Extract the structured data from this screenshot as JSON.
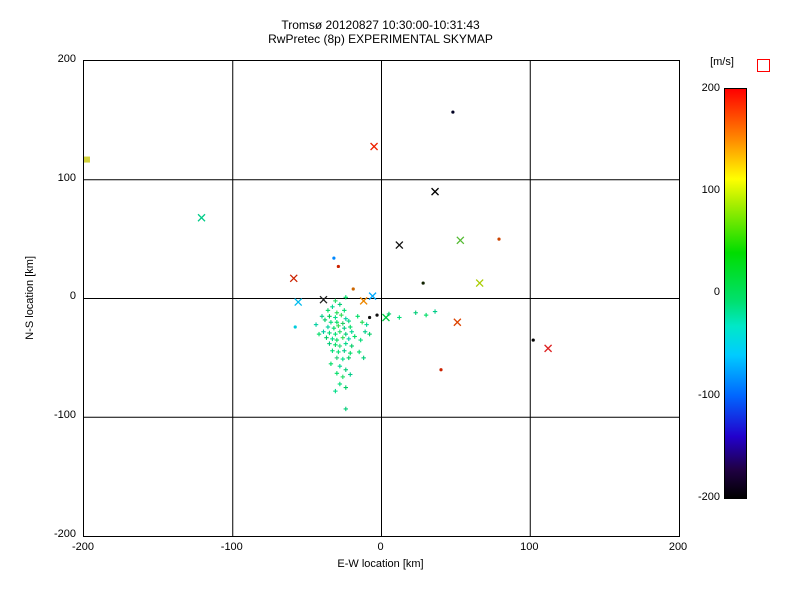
{
  "title": {
    "line1": "Tromsø 20120827 10:30:00-10:31:43",
    "line2": "RwPretec (8p) EXPERIMENTAL SKYMAP"
  },
  "chart_data": {
    "type": "scatter",
    "title": "Tromsø 20120827 10:30:00-10:31:43",
    "subtitle": "RwPretec (8p) EXPERIMENTAL SKYMAP",
    "xlabel": "E-W location [km]",
    "ylabel": "N-S location [km]",
    "xlim": [
      -200,
      200
    ],
    "ylim": [
      -200,
      200
    ],
    "xticks": [
      "-200",
      "-100",
      "0",
      "100",
      "200"
    ],
    "yticks": [
      "200",
      "100",
      "0",
      "-100",
      "-200"
    ],
    "grid": [
      -100,
      0,
      100
    ],
    "grid_on": true,
    "value_encoding": "marker color encodes Doppler velocity [m/s] per colorbar; markers: x=cross, p=small plus, d=dot, s=square",
    "colorbar": {
      "title": "[m/s]",
      "ticks": [
        "200",
        "100",
        "0",
        "-100",
        "-200"
      ],
      "min": -200,
      "max": 200,
      "position": "right",
      "stops": [
        [
          "#ff0000",
          0
        ],
        [
          "#ff8c00",
          12.5
        ],
        [
          "#ffff00",
          22
        ],
        [
          "#aaee00",
          28
        ],
        [
          "#00dd00",
          40
        ],
        [
          "#00e070",
          52
        ],
        [
          "#00e8c8",
          58
        ],
        [
          "#00ccff",
          65
        ],
        [
          "#0066ff",
          75
        ],
        [
          "#2200cc",
          85
        ],
        [
          "#200044",
          93
        ],
        [
          "#000000",
          100
        ]
      ]
    },
    "points": [
      [
        -198,
        117,
        "#d2d23c",
        "s"
      ],
      [
        -121,
        68,
        "#00cc88",
        "x"
      ],
      [
        -59,
        17,
        "#cc2200",
        "x"
      ],
      [
        -56,
        -3,
        "#00bbee",
        "x"
      ],
      [
        -39,
        -1,
        "#222222",
        "x"
      ],
      [
        -12,
        -2,
        "#ee8800",
        "x"
      ],
      [
        -6,
        2,
        "#00aaff",
        "x"
      ],
      [
        -5,
        128,
        "#ee2200",
        "x"
      ],
      [
        3,
        -16,
        "#00cc44",
        "x"
      ],
      [
        12,
        45,
        "#111111",
        "x"
      ],
      [
        36,
        90,
        "#000000",
        "x"
      ],
      [
        53,
        49,
        "#55bb33",
        "x"
      ],
      [
        51,
        -20,
        "#dd4400",
        "x"
      ],
      [
        66,
        13,
        "#aacc00",
        "x"
      ],
      [
        112,
        -42,
        "#dd2222",
        "x"
      ],
      [
        -32,
        34,
        "#0088ff",
        "d"
      ],
      [
        48,
        157,
        "#000022",
        "d"
      ],
      [
        79,
        50,
        "#cc4400",
        "d"
      ],
      [
        -29,
        27,
        "#cc2200",
        "d"
      ],
      [
        28,
        13,
        "#102200",
        "d"
      ],
      [
        -8,
        -16,
        "#111111",
        "d"
      ],
      [
        -3,
        -14,
        "#111111",
        "d"
      ],
      [
        102,
        -35,
        "#000000",
        "d"
      ],
      [
        40,
        -60,
        "#cc2200",
        "d"
      ],
      [
        -58,
        -24,
        "#00ccdd",
        "d"
      ],
      [
        -19,
        8,
        "#cc6600",
        "d"
      ],
      [
        -36,
        -10,
        "#00dd66",
        "p"
      ],
      [
        -33,
        -7,
        "#00d890",
        "p"
      ],
      [
        -30,
        -12,
        "#22dd55",
        "p"
      ],
      [
        -28,
        -5,
        "#00cc77",
        "p"
      ],
      [
        -25,
        -10,
        "#00e070",
        "p"
      ],
      [
        -35,
        -15,
        "#00cc55",
        "p"
      ],
      [
        -31,
        -16,
        "#00dd88",
        "p"
      ],
      [
        -27,
        -14,
        "#33dd55",
        "p"
      ],
      [
        -24,
        -17,
        "#00d0a0",
        "p"
      ],
      [
        -38,
        -18,
        "#00cc66",
        "p"
      ],
      [
        -34,
        -20,
        "#00dd77",
        "p"
      ],
      [
        -30,
        -20,
        "#00e060",
        "p"
      ],
      [
        -26,
        -21,
        "#22cc66",
        "p"
      ],
      [
        -22,
        -19,
        "#00d888",
        "p"
      ],
      [
        -36,
        -24,
        "#00cfa0",
        "p"
      ],
      [
        -32,
        -25,
        "#00dd66",
        "p"
      ],
      [
        -29,
        -23,
        "#33e055",
        "p"
      ],
      [
        -25,
        -25,
        "#00cc88",
        "p"
      ],
      [
        -21,
        -24,
        "#00dd66",
        "p"
      ],
      [
        -39,
        -28,
        "#00c9a0",
        "p"
      ],
      [
        -35,
        -29,
        "#00dd77",
        "p"
      ],
      [
        -31,
        -30,
        "#00e070",
        "p"
      ],
      [
        -28,
        -28,
        "#22dd66",
        "p"
      ],
      [
        -24,
        -30,
        "#00cc77",
        "p"
      ],
      [
        -20,
        -28,
        "#00d890",
        "p"
      ],
      [
        -37,
        -33,
        "#00cc66",
        "p"
      ],
      [
        -33,
        -34,
        "#00dd88",
        "p"
      ],
      [
        -30,
        -35,
        "#00e060",
        "p"
      ],
      [
        -26,
        -33,
        "#33dd55",
        "p"
      ],
      [
        -22,
        -34,
        "#00cfa8",
        "p"
      ],
      [
        -18,
        -32,
        "#00dd66",
        "p"
      ],
      [
        -35,
        -38,
        "#00cc77",
        "p"
      ],
      [
        -31,
        -39,
        "#00dd66",
        "p"
      ],
      [
        -28,
        -40,
        "#22dd77",
        "p"
      ],
      [
        -24,
        -38,
        "#00d888",
        "p"
      ],
      [
        -20,
        -40,
        "#00cc66",
        "p"
      ],
      [
        -33,
        -44,
        "#00dd77",
        "p"
      ],
      [
        -29,
        -45,
        "#00e070",
        "p"
      ],
      [
        -25,
        -44,
        "#00cc88",
        "p"
      ],
      [
        -21,
        -46,
        "#00dd66",
        "p"
      ],
      [
        -30,
        -50,
        "#22cc77",
        "p"
      ],
      [
        -26,
        -51,
        "#00dd88",
        "p"
      ],
      [
        -22,
        -50,
        "#00cc66",
        "p"
      ],
      [
        -34,
        -55,
        "#00dd66",
        "p"
      ],
      [
        -28,
        -57,
        "#00d890",
        "p"
      ],
      [
        -24,
        -60,
        "#00cc77",
        "p"
      ],
      [
        -30,
        -63,
        "#00dd66",
        "p"
      ],
      [
        -26,
        -66,
        "#22dd66",
        "p"
      ],
      [
        -21,
        -64,
        "#00cc88",
        "p"
      ],
      [
        -28,
        -72,
        "#00dd77",
        "p"
      ],
      [
        -24,
        -75,
        "#00cc66",
        "p"
      ],
      [
        -31,
        -78,
        "#00dd88",
        "p"
      ],
      [
        -24,
        -93,
        "#00cc77",
        "p"
      ],
      [
        -16,
        -15,
        "#00dd66",
        "p"
      ],
      [
        -13,
        -20,
        "#22dd55",
        "p"
      ],
      [
        -11,
        -28,
        "#00cc88",
        "p"
      ],
      [
        -14,
        -35,
        "#00dd77",
        "p"
      ],
      [
        -10,
        -22,
        "#00d890",
        "p"
      ],
      [
        -8,
        -30,
        "#00cc66",
        "p"
      ],
      [
        -15,
        -45,
        "#00dd66",
        "p"
      ],
      [
        -12,
        -50,
        "#00cc77",
        "p"
      ],
      [
        -44,
        -22,
        "#00cfa0",
        "p"
      ],
      [
        -42,
        -30,
        "#00dd66",
        "p"
      ],
      [
        -40,
        -15,
        "#00cc88",
        "p"
      ],
      [
        -24,
        1,
        "#00dd66",
        "p"
      ],
      [
        -31,
        -2,
        "#22dd66",
        "p"
      ],
      [
        5,
        -13,
        "#00cc66",
        "p"
      ],
      [
        12,
        -16,
        "#00dd77",
        "p"
      ],
      [
        23,
        -12,
        "#00cc77",
        "p"
      ],
      [
        30,
        -14,
        "#00dd66",
        "p"
      ],
      [
        36,
        -11,
        "#00cc88",
        "p"
      ]
    ]
  }
}
